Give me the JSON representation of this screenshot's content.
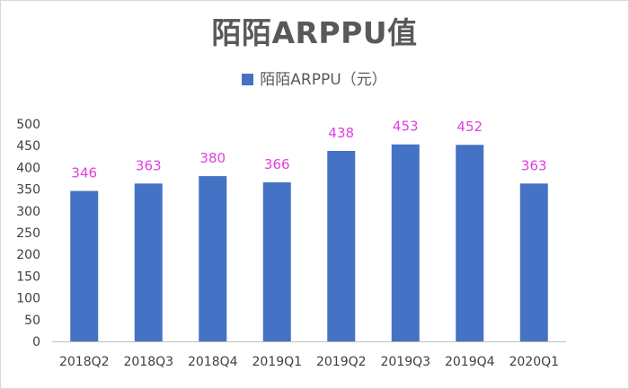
{
  "title": "陌陌ARPPU值",
  "legend": {
    "label": "陌陌ARPPU（元）"
  },
  "colors": {
    "bar": "#4472C4",
    "data_label": "#E040E0",
    "axis": "#BFBFBF"
  },
  "chart_data": {
    "type": "bar",
    "title": "陌陌ARPPU值",
    "xlabel": "",
    "ylabel": "",
    "categories": [
      "2018Q2",
      "2018Q3",
      "2018Q4",
      "2019Q1",
      "2019Q2",
      "2019Q3",
      "2019Q4",
      "2020Q1"
    ],
    "series": [
      {
        "name": "陌陌ARPPU（元）",
        "values": [
          346,
          363,
          380,
          366,
          438,
          453,
          452,
          363
        ]
      }
    ],
    "ylim": [
      0,
      500
    ],
    "yticks": [
      0,
      50,
      100,
      150,
      200,
      250,
      300,
      350,
      400,
      450,
      500
    ],
    "grid": false,
    "legend_position": "top"
  }
}
